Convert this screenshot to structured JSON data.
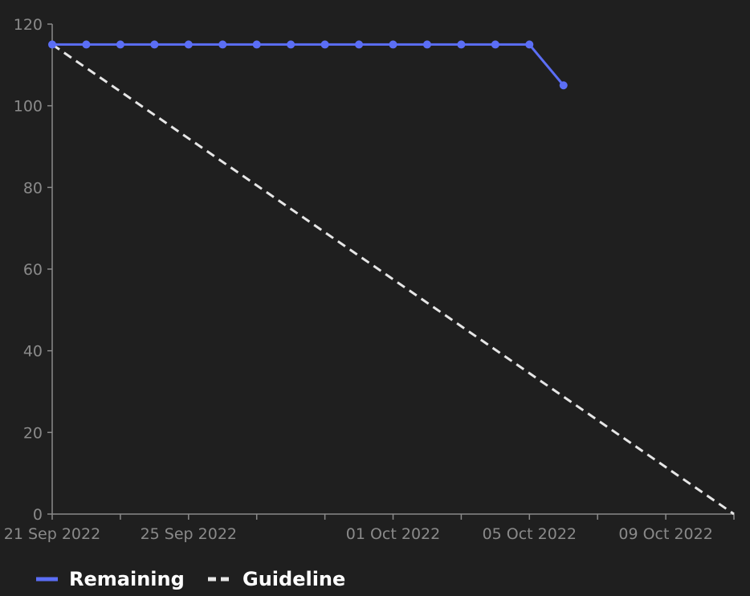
{
  "chart_data": {
    "type": "line",
    "title": "",
    "xlabel": "",
    "ylabel": "",
    "background": "#1f1f1f",
    "grid": false,
    "legend_position": "bottom-left",
    "x_range": [
      "2022-09-21",
      "2022-10-11"
    ],
    "ylim": [
      0,
      120
    ],
    "y_ticks": [
      0,
      20,
      40,
      60,
      80,
      100,
      120
    ],
    "x_ticks": [
      {
        "date": "2022-09-21",
        "label": "21 Sep 2022"
      },
      {
        "date": "2022-09-23",
        "label": ""
      },
      {
        "date": "2022-09-25",
        "label": "25 Sep 2022"
      },
      {
        "date": "2022-09-27",
        "label": ""
      },
      {
        "date": "2022-09-29",
        "label": ""
      },
      {
        "date": "2022-10-01",
        "label": "01 Oct 2022"
      },
      {
        "date": "2022-10-03",
        "label": ""
      },
      {
        "date": "2022-10-05",
        "label": "05 Oct 2022"
      },
      {
        "date": "2022-10-07",
        "label": ""
      },
      {
        "date": "2022-10-09",
        "label": "09 Oct 2022"
      },
      {
        "date": "2022-10-11",
        "label": ""
      }
    ],
    "series": [
      {
        "name": "Remaining",
        "color": "#5b6ef5",
        "style": "solid",
        "markers": true,
        "points": [
          {
            "x": "2022-09-21",
            "y": 115
          },
          {
            "x": "2022-09-22",
            "y": 115
          },
          {
            "x": "2022-09-23",
            "y": 115
          },
          {
            "x": "2022-09-24",
            "y": 115
          },
          {
            "x": "2022-09-25",
            "y": 115
          },
          {
            "x": "2022-09-26",
            "y": 115
          },
          {
            "x": "2022-09-27",
            "y": 115
          },
          {
            "x": "2022-09-28",
            "y": 115
          },
          {
            "x": "2022-09-29",
            "y": 115
          },
          {
            "x": "2022-09-30",
            "y": 115
          },
          {
            "x": "2022-10-01",
            "y": 115
          },
          {
            "x": "2022-10-02",
            "y": 115
          },
          {
            "x": "2022-10-03",
            "y": 115
          },
          {
            "x": "2022-10-04",
            "y": 115
          },
          {
            "x": "2022-10-05",
            "y": 115
          },
          {
            "x": "2022-10-06",
            "y": 105
          }
        ]
      },
      {
        "name": "Guideline",
        "color": "#e6e6e6",
        "style": "dashed",
        "markers": false,
        "points": [
          {
            "x": "2022-09-21",
            "y": 115
          },
          {
            "x": "2022-10-11",
            "y": 0
          }
        ]
      }
    ]
  }
}
